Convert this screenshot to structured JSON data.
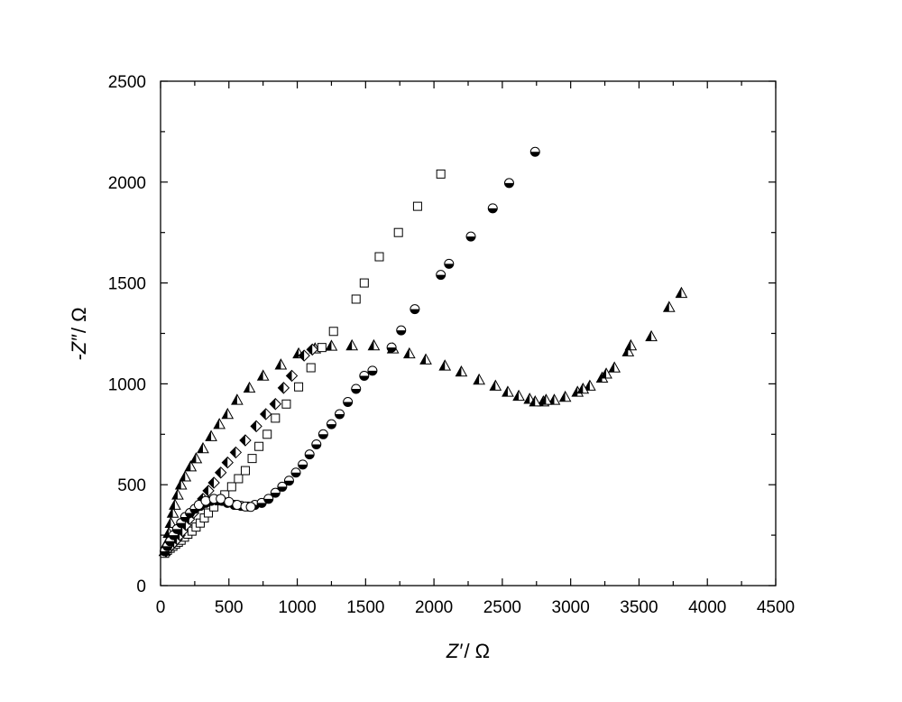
{
  "chart_data": {
    "type": "scatter",
    "title": "",
    "xlabel": {
      "var": "Z′",
      "unit": "/ Ω"
    },
    "ylabel": {
      "var": "-Z″",
      "unit": "/ Ω"
    },
    "xlim": [
      0,
      4500
    ],
    "ylim": [
      0,
      2500
    ],
    "x_ticks": [
      0,
      500,
      1000,
      1500,
      2000,
      2500,
      3000,
      3500,
      4000,
      4500
    ],
    "y_ticks": [
      0,
      500,
      1000,
      1500,
      2000,
      2500
    ],
    "x_minor_step": 250,
    "y_minor_step": 250,
    "grid": false,
    "legend": "none",
    "series": [
      {
        "marker": "half-filled-triangle",
        "points": [
          [
            30,
            170
          ],
          [
            45,
            210
          ],
          [
            60,
            260
          ],
          [
            75,
            310
          ],
          [
            90,
            360
          ],
          [
            105,
            400
          ],
          [
            125,
            450
          ],
          [
            150,
            500
          ],
          [
            180,
            540
          ],
          [
            220,
            590
          ],
          [
            260,
            630
          ],
          [
            310,
            680
          ],
          [
            370,
            740
          ],
          [
            430,
            800
          ],
          [
            490,
            850
          ],
          [
            560,
            920
          ],
          [
            650,
            980
          ],
          [
            750,
            1040
          ],
          [
            880,
            1095
          ],
          [
            1010,
            1150
          ],
          [
            1130,
            1175
          ],
          [
            1250,
            1188
          ],
          [
            1400,
            1190
          ],
          [
            1560,
            1190
          ],
          [
            1700,
            1175
          ],
          [
            1820,
            1150
          ],
          [
            1940,
            1120
          ],
          [
            2080,
            1090
          ],
          [
            2200,
            1060
          ],
          [
            2330,
            1020
          ],
          [
            2450,
            990
          ],
          [
            2540,
            960
          ],
          [
            2620,
            940
          ],
          [
            2700,
            925
          ],
          [
            2800,
            912
          ],
          [
            2880,
            920
          ],
          [
            2960,
            935
          ],
          [
            3050,
            960
          ],
          [
            3140,
            990
          ],
          [
            3230,
            1030
          ],
          [
            3320,
            1080
          ],
          [
            3420,
            1160
          ],
          [
            3590,
            1235
          ],
          [
            3720,
            1380
          ],
          [
            3810,
            1450
          ]
        ]
      },
      {
        "marker": "half-filled-triangle",
        "points": [
          [
            2740,
            912
          ],
          [
            2820,
            920
          ],
          [
            3090,
            975
          ],
          [
            3260,
            1050
          ],
          [
            3440,
            1190
          ]
        ]
      },
      {
        "marker": "open-square",
        "points": [
          [
            30,
            160
          ],
          [
            50,
            175
          ],
          [
            70,
            185
          ],
          [
            90,
            195
          ],
          [
            110,
            205
          ],
          [
            130,
            215
          ],
          [
            150,
            225
          ],
          [
            175,
            240
          ],
          [
            200,
            255
          ],
          [
            230,
            270
          ],
          [
            260,
            290
          ],
          [
            290,
            310
          ],
          [
            320,
            335
          ],
          [
            350,
            360
          ],
          [
            390,
            390
          ],
          [
            430,
            420
          ],
          [
            470,
            450
          ],
          [
            520,
            490
          ],
          [
            570,
            530
          ],
          [
            620,
            570
          ],
          [
            670,
            630
          ],
          [
            720,
            690
          ],
          [
            780,
            750
          ],
          [
            840,
            830
          ],
          [
            920,
            900
          ],
          [
            1010,
            985
          ],
          [
            1100,
            1080
          ],
          [
            1180,
            1180
          ],
          [
            1265,
            1260
          ],
          [
            1430,
            1420
          ],
          [
            1490,
            1500
          ],
          [
            1600,
            1630
          ],
          [
            1740,
            1750
          ],
          [
            1880,
            1880
          ],
          [
            2050,
            2040
          ]
        ]
      },
      {
        "marker": "half-filled-diamond",
        "points": [
          [
            40,
            170
          ],
          [
            60,
            185
          ],
          [
            80,
            200
          ],
          [
            100,
            215
          ],
          [
            120,
            230
          ],
          [
            140,
            250
          ],
          [
            160,
            270
          ],
          [
            185,
            300
          ],
          [
            210,
            330
          ],
          [
            240,
            360
          ],
          [
            270,
            390
          ],
          [
            310,
            430
          ],
          [
            350,
            470
          ],
          [
            390,
            510
          ],
          [
            440,
            560
          ],
          [
            490,
            610
          ],
          [
            550,
            660
          ],
          [
            620,
            720
          ],
          [
            700,
            790
          ],
          [
            770,
            850
          ],
          [
            840,
            900
          ],
          [
            900,
            980
          ],
          [
            960,
            1040
          ],
          [
            1050,
            1140
          ],
          [
            1110,
            1170
          ]
        ]
      },
      {
        "marker": "half-filled-circle",
        "points": [
          [
            30,
            170
          ],
          [
            50,
            195
          ],
          [
            70,
            220
          ],
          [
            95,
            250
          ],
          [
            120,
            280
          ],
          [
            150,
            310
          ],
          [
            180,
            340
          ],
          [
            215,
            360
          ],
          [
            250,
            380
          ],
          [
            290,
            395
          ],
          [
            330,
            410
          ],
          [
            370,
            420
          ],
          [
            410,
            425
          ],
          [
            450,
            420
          ],
          [
            490,
            410
          ],
          [
            540,
            400
          ],
          [
            590,
            395
          ],
          [
            640,
            392
          ],
          [
            690,
            400
          ],
          [
            740,
            410
          ],
          [
            790,
            430
          ],
          [
            840,
            460
          ],
          [
            890,
            490
          ],
          [
            940,
            520
          ],
          [
            990,
            560
          ],
          [
            1040,
            600
          ],
          [
            1090,
            650
          ],
          [
            1140,
            700
          ],
          [
            1190,
            750
          ],
          [
            1250,
            800
          ],
          [
            1310,
            850
          ],
          [
            1370,
            910
          ],
          [
            1430,
            975
          ],
          [
            1490,
            1040
          ],
          [
            1550,
            1065
          ],
          [
            1690,
            1180
          ],
          [
            1760,
            1265
          ],
          [
            1860,
            1370
          ],
          [
            2050,
            1540
          ],
          [
            2110,
            1595
          ],
          [
            2270,
            1730
          ],
          [
            2430,
            1870
          ],
          [
            2550,
            1995
          ],
          [
            2740,
            2150
          ]
        ]
      },
      {
        "marker": "open-circle",
        "points": [
          [
            280,
            400
          ],
          [
            330,
            420
          ],
          [
            390,
            430
          ],
          [
            440,
            430
          ],
          [
            500,
            415
          ],
          [
            560,
            400
          ],
          [
            620,
            392
          ],
          [
            660,
            390
          ]
        ]
      }
    ]
  }
}
